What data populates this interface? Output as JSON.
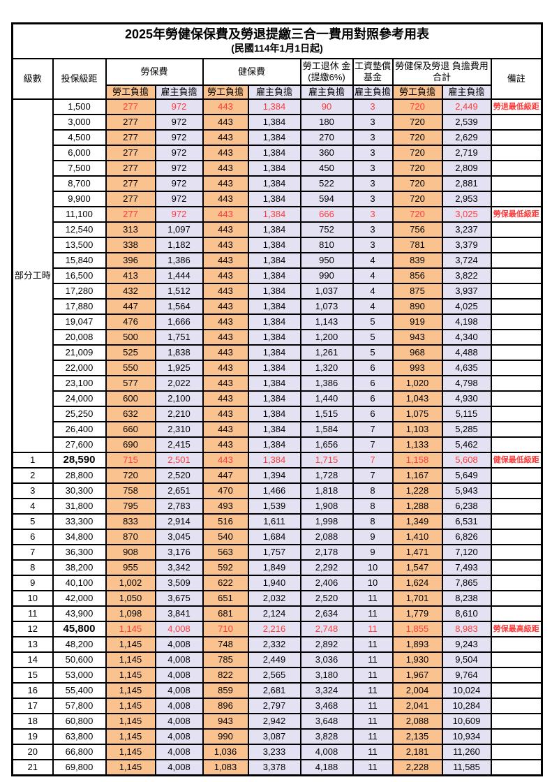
{
  "title": {
    "line1": "2025年勞健保保費及勞退提繳三合一費用對照參考用表",
    "line2": "(民國114年1月1日起)"
  },
  "header": {
    "level": "級數",
    "bracket": "投保級距",
    "labor_insurance": "勞保費",
    "health_insurance": "健保費",
    "pension": "勞工退休 金(提繳6%)",
    "wage_fund": "工資墊償 基金",
    "total": "勞健保及勞退 負擔費用合計",
    "remark": "備註",
    "employee_share": "勞工負擔",
    "employer_share": "雇主負擔"
  },
  "part_time_label": "部分工時",
  "part_time_rowspan": 23,
  "colors": {
    "employee_bg": "#FAC28E",
    "employer_bg": "#E4E1F2",
    "highlight_red": "#FF3B3B",
    "border": "#000000"
  },
  "value_column_styles": [
    "emp",
    "er",
    "emp",
    "er",
    "er",
    "er",
    "emp",
    "er"
  ],
  "rows": [
    {
      "level": "",
      "bracket": "1,500",
      "values": [
        "277",
        "972",
        "443",
        "1,384",
        "90",
        "3",
        "720",
        "2,449"
      ],
      "note": "勞退最低級距",
      "red": true,
      "bold": false
    },
    {
      "level": "",
      "bracket": "3,000",
      "values": [
        "277",
        "972",
        "443",
        "1,384",
        "180",
        "3",
        "720",
        "2,539"
      ],
      "note": "",
      "red": false,
      "bold": false
    },
    {
      "level": "",
      "bracket": "4,500",
      "values": [
        "277",
        "972",
        "443",
        "1,384",
        "270",
        "3",
        "720",
        "2,629"
      ],
      "note": "",
      "red": false,
      "bold": false
    },
    {
      "level": "",
      "bracket": "6,000",
      "values": [
        "277",
        "972",
        "443",
        "1,384",
        "360",
        "3",
        "720",
        "2,719"
      ],
      "note": "",
      "red": false,
      "bold": false
    },
    {
      "level": "",
      "bracket": "7,500",
      "values": [
        "277",
        "972",
        "443",
        "1,384",
        "450",
        "3",
        "720",
        "2,809"
      ],
      "note": "",
      "red": false,
      "bold": false
    },
    {
      "level": "",
      "bracket": "8,700",
      "values": [
        "277",
        "972",
        "443",
        "1,384",
        "522",
        "3",
        "720",
        "2,881"
      ],
      "note": "",
      "red": false,
      "bold": false
    },
    {
      "level": "",
      "bracket": "9,900",
      "values": [
        "277",
        "972",
        "443",
        "1,384",
        "594",
        "3",
        "720",
        "2,953"
      ],
      "note": "",
      "red": false,
      "bold": false
    },
    {
      "level": "",
      "bracket": "11,100",
      "values": [
        "277",
        "972",
        "443",
        "1,384",
        "666",
        "3",
        "720",
        "3,025"
      ],
      "note": "勞保最低級距",
      "red": true,
      "bold": false
    },
    {
      "level": "",
      "bracket": "12,540",
      "values": [
        "313",
        "1,097",
        "443",
        "1,384",
        "752",
        "3",
        "756",
        "3,237"
      ],
      "note": "",
      "red": false,
      "bold": false
    },
    {
      "level": "",
      "bracket": "13,500",
      "values": [
        "338",
        "1,182",
        "443",
        "1,384",
        "810",
        "3",
        "781",
        "3,379"
      ],
      "note": "",
      "red": false,
      "bold": false
    },
    {
      "level": "",
      "bracket": "15,840",
      "values": [
        "396",
        "1,386",
        "443",
        "1,384",
        "950",
        "4",
        "839",
        "3,724"
      ],
      "note": "",
      "red": false,
      "bold": false
    },
    {
      "level": "",
      "bracket": "16,500",
      "values": [
        "413",
        "1,444",
        "443",
        "1,384",
        "990",
        "4",
        "856",
        "3,822"
      ],
      "note": "",
      "red": false,
      "bold": false
    },
    {
      "level": "",
      "bracket": "17,280",
      "values": [
        "432",
        "1,512",
        "443",
        "1,384",
        "1,037",
        "4",
        "875",
        "3,937"
      ],
      "note": "",
      "red": false,
      "bold": false
    },
    {
      "level": "",
      "bracket": "17,880",
      "values": [
        "447",
        "1,564",
        "443",
        "1,384",
        "1,073",
        "4",
        "890",
        "4,025"
      ],
      "note": "",
      "red": false,
      "bold": false
    },
    {
      "level": "",
      "bracket": "19,047",
      "values": [
        "476",
        "1,666",
        "443",
        "1,384",
        "1,143",
        "5",
        "919",
        "4,198"
      ],
      "note": "",
      "red": false,
      "bold": false
    },
    {
      "level": "",
      "bracket": "20,008",
      "values": [
        "500",
        "1,751",
        "443",
        "1,384",
        "1,200",
        "5",
        "943",
        "4,340"
      ],
      "note": "",
      "red": false,
      "bold": false
    },
    {
      "level": "",
      "bracket": "21,009",
      "values": [
        "525",
        "1,838",
        "443",
        "1,384",
        "1,261",
        "5",
        "968",
        "4,488"
      ],
      "note": "",
      "red": false,
      "bold": false
    },
    {
      "level": "",
      "bracket": "22,000",
      "values": [
        "550",
        "1,925",
        "443",
        "1,384",
        "1,320",
        "6",
        "993",
        "4,635"
      ],
      "note": "",
      "red": false,
      "bold": false
    },
    {
      "level": "",
      "bracket": "23,100",
      "values": [
        "577",
        "2,022",
        "443",
        "1,384",
        "1,386",
        "6",
        "1,020",
        "4,798"
      ],
      "note": "",
      "red": false,
      "bold": false
    },
    {
      "level": "",
      "bracket": "24,000",
      "values": [
        "600",
        "2,100",
        "443",
        "1,384",
        "1,440",
        "6",
        "1,043",
        "4,930"
      ],
      "note": "",
      "red": false,
      "bold": false
    },
    {
      "level": "",
      "bracket": "25,250",
      "values": [
        "632",
        "2,210",
        "443",
        "1,384",
        "1,515",
        "6",
        "1,075",
        "5,115"
      ],
      "note": "",
      "red": false,
      "bold": false
    },
    {
      "level": "",
      "bracket": "26,400",
      "values": [
        "660",
        "2,310",
        "443",
        "1,384",
        "1,584",
        "7",
        "1,103",
        "5,285"
      ],
      "note": "",
      "red": false,
      "bold": false
    },
    {
      "level": "",
      "bracket": "27,600",
      "values": [
        "690",
        "2,415",
        "443",
        "1,384",
        "1,656",
        "7",
        "1,133",
        "5,462"
      ],
      "note": "",
      "red": false,
      "bold": false
    },
    {
      "level": "1",
      "bracket": "28,590",
      "values": [
        "715",
        "2,501",
        "443",
        "1,384",
        "1,715",
        "7",
        "1,158",
        "5,608"
      ],
      "note": "健保最低級距",
      "red": true,
      "bold": true
    },
    {
      "level": "2",
      "bracket": "28,800",
      "values": [
        "720",
        "2,520",
        "447",
        "1,394",
        "1,728",
        "7",
        "1,167",
        "5,649"
      ],
      "note": "",
      "red": false,
      "bold": false
    },
    {
      "level": "3",
      "bracket": "30,300",
      "values": [
        "758",
        "2,651",
        "470",
        "1,466",
        "1,818",
        "8",
        "1,228",
        "5,943"
      ],
      "note": "",
      "red": false,
      "bold": false
    },
    {
      "level": "4",
      "bracket": "31,800",
      "values": [
        "795",
        "2,783",
        "493",
        "1,539",
        "1,908",
        "8",
        "1,288",
        "6,238"
      ],
      "note": "",
      "red": false,
      "bold": false
    },
    {
      "level": "5",
      "bracket": "33,300",
      "values": [
        "833",
        "2,914",
        "516",
        "1,611",
        "1,998",
        "8",
        "1,349",
        "6,531"
      ],
      "note": "",
      "red": false,
      "bold": false
    },
    {
      "level": "6",
      "bracket": "34,800",
      "values": [
        "870",
        "3,045",
        "540",
        "1,684",
        "2,088",
        "9",
        "1,410",
        "6,826"
      ],
      "note": "",
      "red": false,
      "bold": false
    },
    {
      "level": "7",
      "bracket": "36,300",
      "values": [
        "908",
        "3,176",
        "563",
        "1,757",
        "2,178",
        "9",
        "1,471",
        "7,120"
      ],
      "note": "",
      "red": false,
      "bold": false
    },
    {
      "level": "8",
      "bracket": "38,200",
      "values": [
        "955",
        "3,342",
        "592",
        "1,849",
        "2,292",
        "10",
        "1,547",
        "7,493"
      ],
      "note": "",
      "red": false,
      "bold": false
    },
    {
      "level": "9",
      "bracket": "40,100",
      "values": [
        "1,002",
        "3,509",
        "622",
        "1,940",
        "2,406",
        "10",
        "1,624",
        "7,865"
      ],
      "note": "",
      "red": false,
      "bold": false
    },
    {
      "level": "10",
      "bracket": "42,000",
      "values": [
        "1,050",
        "3,675",
        "651",
        "2,032",
        "2,520",
        "11",
        "1,701",
        "8,238"
      ],
      "note": "",
      "red": false,
      "bold": false
    },
    {
      "level": "11",
      "bracket": "43,900",
      "values": [
        "1,098",
        "3,841",
        "681",
        "2,124",
        "2,634",
        "11",
        "1,779",
        "8,610"
      ],
      "note": "",
      "red": false,
      "bold": false
    },
    {
      "level": "12",
      "bracket": "45,800",
      "values": [
        "1,145",
        "4,008",
        "710",
        "2,216",
        "2,748",
        "11",
        "1,855",
        "8,983"
      ],
      "note": "勞保最高級距",
      "red": true,
      "bold": true
    },
    {
      "level": "13",
      "bracket": "48,200",
      "values": [
        "1,145",
        "4,008",
        "748",
        "2,332",
        "2,892",
        "11",
        "1,893",
        "9,243"
      ],
      "note": "",
      "red": false,
      "bold": false
    },
    {
      "level": "14",
      "bracket": "50,600",
      "values": [
        "1,145",
        "4,008",
        "785",
        "2,449",
        "3,036",
        "11",
        "1,930",
        "9,504"
      ],
      "note": "",
      "red": false,
      "bold": false
    },
    {
      "level": "15",
      "bracket": "53,000",
      "values": [
        "1,145",
        "4,008",
        "822",
        "2,565",
        "3,180",
        "11",
        "1,967",
        "9,764"
      ],
      "note": "",
      "red": false,
      "bold": false
    },
    {
      "level": "16",
      "bracket": "55,400",
      "values": [
        "1,145",
        "4,008",
        "859",
        "2,681",
        "3,324",
        "11",
        "2,004",
        "10,024"
      ],
      "note": "",
      "red": false,
      "bold": false
    },
    {
      "level": "17",
      "bracket": "57,800",
      "values": [
        "1,145",
        "4,008",
        "896",
        "2,797",
        "3,468",
        "11",
        "2,041",
        "10,284"
      ],
      "note": "",
      "red": false,
      "bold": false
    },
    {
      "level": "18",
      "bracket": "60,800",
      "values": [
        "1,145",
        "4,008",
        "943",
        "2,942",
        "3,648",
        "11",
        "2,088",
        "10,609"
      ],
      "note": "",
      "red": false,
      "bold": false
    },
    {
      "level": "19",
      "bracket": "63,800",
      "values": [
        "1,145",
        "4,008",
        "990",
        "3,087",
        "3,828",
        "11",
        "2,135",
        "10,934"
      ],
      "note": "",
      "red": false,
      "bold": false
    },
    {
      "level": "20",
      "bracket": "66,800",
      "values": [
        "1,145",
        "4,008",
        "1,036",
        "3,233",
        "4,008",
        "11",
        "2,181",
        "11,260"
      ],
      "note": "",
      "red": false,
      "bold": false
    },
    {
      "level": "21",
      "bracket": "69,800",
      "values": [
        "1,145",
        "4,008",
        "1,083",
        "3,378",
        "4,188",
        "11",
        "2,228",
        "11,585"
      ],
      "note": "",
      "red": false,
      "bold": false
    }
  ]
}
